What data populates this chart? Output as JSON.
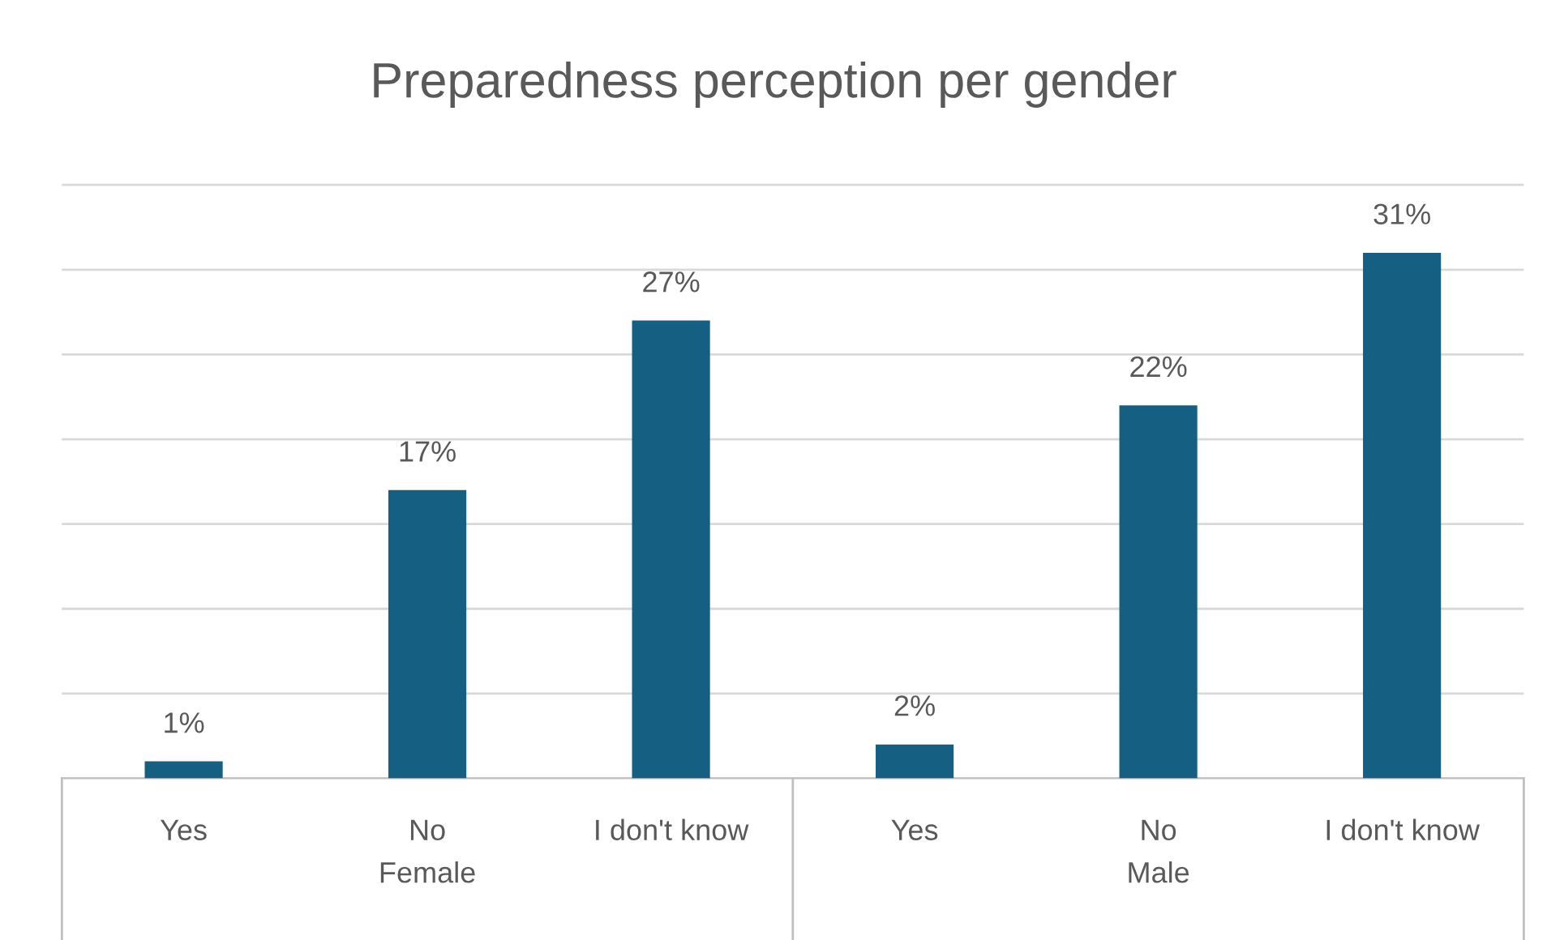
{
  "chart_data": {
    "type": "bar",
    "title": "Preparedness perception per gender",
    "categories": [
      "Yes",
      "No",
      "I don't know",
      "Yes",
      "No",
      "I don't know"
    ],
    "values": [
      1,
      17,
      27,
      2,
      22,
      31
    ],
    "color": "#155f82",
    "value_labels": [
      "1%",
      "17%",
      "27%",
      "2%",
      "22%",
      "31%"
    ],
    "tick_labels": "x",
    "grid": "y",
    "annotations": [
      "Female",
      "Male"
    ]
  }
}
